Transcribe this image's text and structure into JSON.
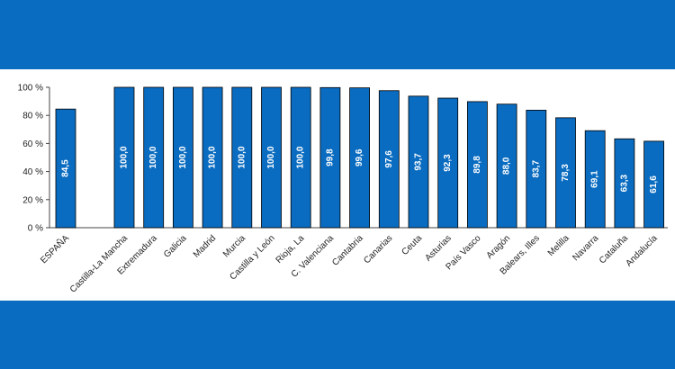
{
  "chart_data": {
    "type": "bar",
    "categories": [
      "ESPAÑA",
      "Castilla-La Mancha",
      "Extremadura",
      "Galicia",
      "Madrid",
      "Murcia",
      "Castilla y León",
      "Rioja, La",
      "C. Valenciana",
      "Cantabria",
      "Canarias",
      "Ceuta",
      "Asturias",
      "País Vasco",
      "Aragón",
      "Balears, Illes",
      "Melilla",
      "Navarra",
      "Cataluña",
      "Andalucía"
    ],
    "values": [
      84.5,
      100.0,
      100.0,
      100.0,
      100.0,
      100.0,
      100.0,
      100.0,
      99.8,
      99.6,
      97.6,
      93.7,
      92.3,
      89.8,
      88.0,
      83.7,
      78.3,
      69.1,
      63.3,
      61.6
    ],
    "value_labels": [
      "84,5",
      "100,0",
      "100,0",
      "100,0",
      "100,0",
      "100,0",
      "100,0",
      "100,0",
      "99,8",
      "99,6",
      "97,6",
      "93,7",
      "92,3",
      "89,8",
      "88,0",
      "83,7",
      "78,3",
      "69,1",
      "63,3",
      "61,6"
    ],
    "yticks": [
      0,
      20,
      40,
      60,
      80,
      100
    ],
    "ytick_labels": [
      "0 %",
      "20 %",
      "40 %",
      "60 %",
      "80 %",
      "100 %"
    ],
    "ylim": [
      0,
      100
    ],
    "grid": false,
    "bar_color": "#0a6cc0",
    "title": "",
    "xlabel": "",
    "ylabel": ""
  },
  "colors": {
    "band": "#0a6cc0",
    "panel": "#ffffff",
    "bar": "#0a6cc0",
    "bar_edge": "#000000"
  }
}
